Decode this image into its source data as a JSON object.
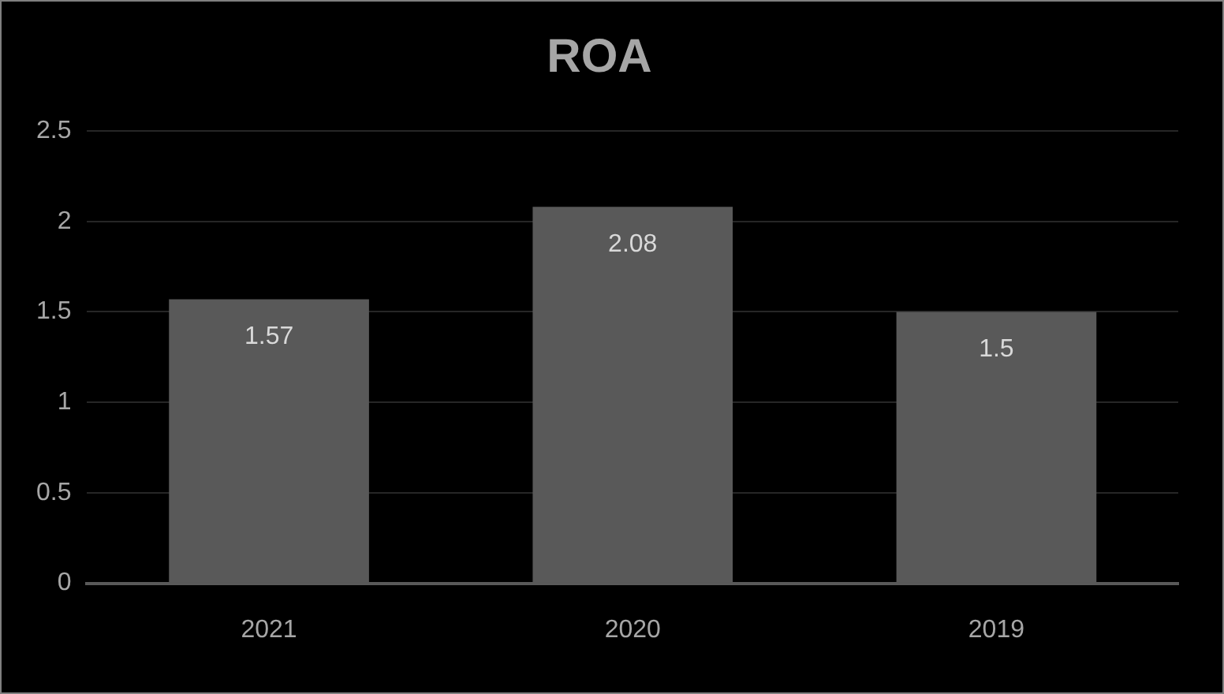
{
  "chart_data": {
    "type": "bar",
    "title": "ROA",
    "categories": [
      "2021",
      "2020",
      "2019"
    ],
    "values": [
      1.57,
      2.08,
      1.5
    ],
    "color": "#595959",
    "ylim": [
      0,
      2.5
    ],
    "yticks": [
      0,
      0.5,
      1,
      1.5,
      2,
      2.5
    ],
    "grid": "y",
    "legend": false,
    "data_labels": true
  }
}
